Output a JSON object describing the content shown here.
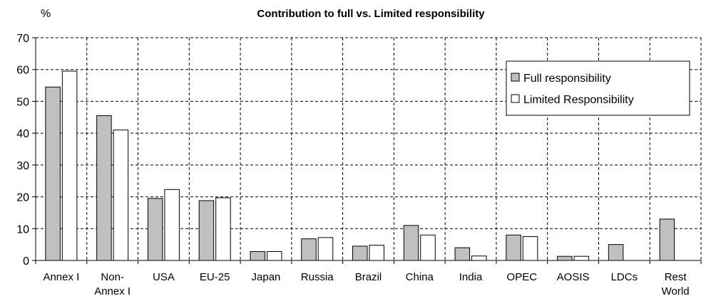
{
  "chart_data": {
    "type": "bar",
    "title": "Contribution to full vs. Limited responsibility",
    "ylabel": "%",
    "xlabel": "",
    "ylim": [
      0,
      70
    ],
    "yticks": [
      0,
      10,
      20,
      30,
      40,
      50,
      60,
      70
    ],
    "grid": true,
    "legend_position": "top-right",
    "categories": [
      [
        "Annex I"
      ],
      [
        "Non-",
        "Annex I"
      ],
      [
        "USA"
      ],
      [
        "EU-25"
      ],
      [
        "Japan"
      ],
      [
        "Russia"
      ],
      [
        "Brazil"
      ],
      [
        "China"
      ],
      [
        "India"
      ],
      [
        "OPEC"
      ],
      [
        "AOSIS"
      ],
      [
        "LDCs"
      ],
      [
        "Rest",
        "World"
      ]
    ],
    "series": [
      {
        "name": "Full responsibility",
        "color": "#c0c0c0",
        "values": [
          54.5,
          45.5,
          19.5,
          18.8,
          2.8,
          6.8,
          4.5,
          11,
          4,
          8,
          1.3,
          5,
          13
        ]
      },
      {
        "name": "Limited Responsibility",
        "color": "#ffffff",
        "values": [
          59.5,
          41,
          22.3,
          19.7,
          2.8,
          7.2,
          4.8,
          8,
          1.4,
          7.5,
          1.3,
          null,
          null
        ]
      }
    ]
  }
}
